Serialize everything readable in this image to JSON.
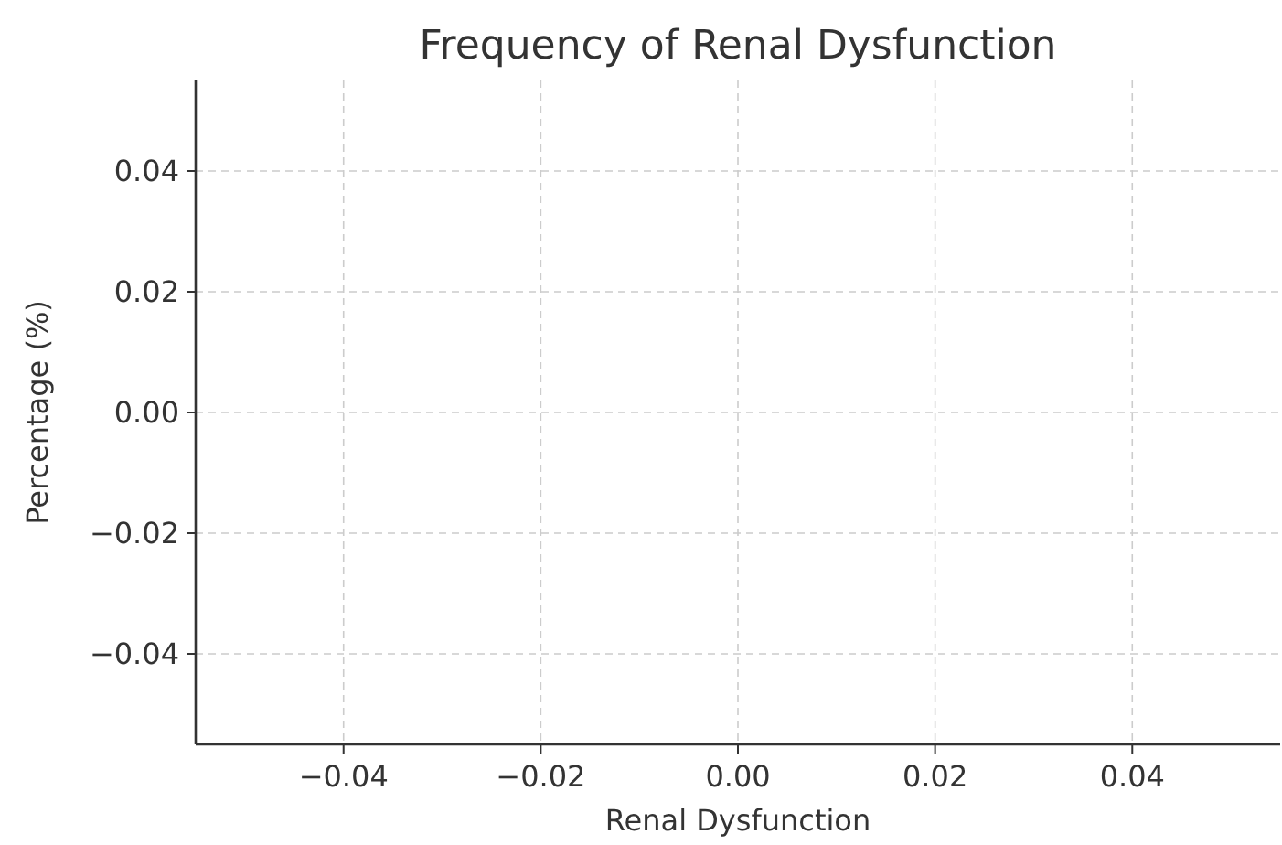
{
  "chart_data": {
    "type": "bar",
    "title": "Frequency of Renal Dysfunction",
    "xlabel": "Renal Dysfunction",
    "ylabel": "Percentage (%)",
    "xlim": [
      -0.055,
      0.055
    ],
    "xticks": [
      {
        "value": -0.04,
        "label": "−0.04"
      },
      {
        "value": -0.02,
        "label": "−0.02"
      },
      {
        "value": 0,
        "label": "0.00"
      },
      {
        "value": 0.02,
        "label": "0.02"
      },
      {
        "value": 0.04,
        "label": "0.04"
      }
    ],
    "ylim": [
      -0.055,
      0.055
    ],
    "yticks": [
      {
        "value": -0.04,
        "label": "−0.04"
      },
      {
        "value": -0.02,
        "label": "−0.02"
      },
      {
        "value": 0,
        "label": "0.00"
      },
      {
        "value": 0.02,
        "label": "0.02"
      },
      {
        "value": 0.04,
        "label": "0.04"
      }
    ],
    "grid": true
  }
}
